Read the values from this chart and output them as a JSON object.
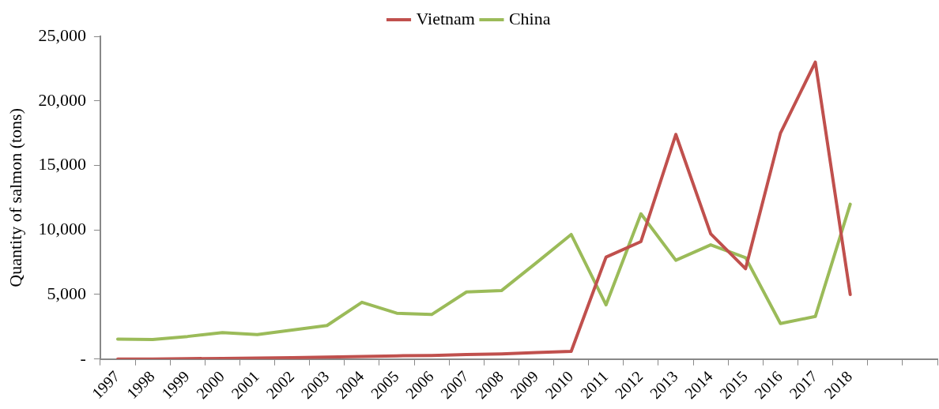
{
  "chart_data": {
    "type": "line",
    "ylabel": "Quantity of salmon (tons)",
    "categories": [
      "1997",
      "1998",
      "1999",
      "2000",
      "2001",
      "2002",
      "2003",
      "2004",
      "2005",
      "2006",
      "2007",
      "2008",
      "2009",
      "2010",
      "2011",
      "2012",
      "2013",
      "2014",
      "2015",
      "2016",
      "2017",
      "2018",
      null,
      null
    ],
    "series": [
      {
        "name": "Vietnam",
        "color": "#c0504d",
        "values": [
          0,
          0,
          30,
          50,
          80,
          100,
          150,
          200,
          250,
          280,
          350,
          400,
          500,
          600,
          7900,
          9100,
          17400,
          9700,
          7000,
          17500,
          23000,
          5000,
          null,
          null
        ]
      },
      {
        "name": "China",
        "color": "#9bbb59",
        "values": [
          1550,
          1520,
          1750,
          2050,
          1900,
          2250,
          2600,
          4400,
          3550,
          3450,
          5200,
          5300,
          7450,
          9650,
          4200,
          11250,
          7650,
          8850,
          7850,
          2750,
          3300,
          12000,
          null,
          null
        ]
      }
    ],
    "ylim": [
      0,
      25000
    ],
    "yticks": [
      {
        "value": 0,
        "label": "-"
      },
      {
        "value": 5000,
        "label": "5,000"
      },
      {
        "value": 10000,
        "label": "10,000"
      },
      {
        "value": 15000,
        "label": "15,000"
      },
      {
        "value": 20000,
        "label": "20,000"
      },
      {
        "value": 25000,
        "label": "25,000"
      }
    ],
    "grid": false,
    "legend": "top",
    "marker": "none",
    "line_style": "solid"
  }
}
